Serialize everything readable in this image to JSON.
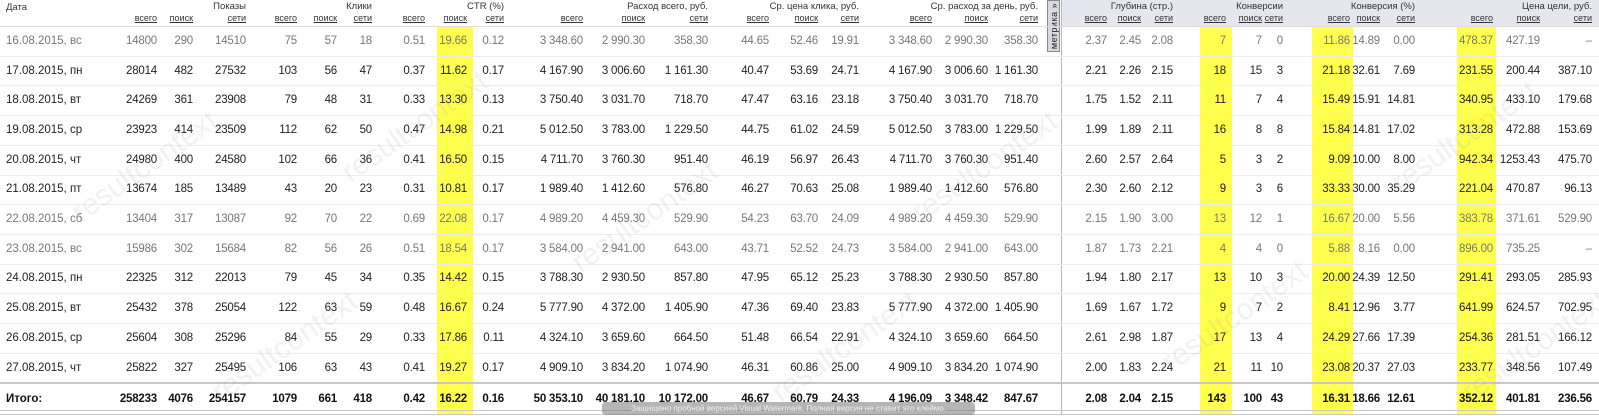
{
  "header": {
    "date_label": "Дата",
    "groups": [
      {
        "title": "Показы",
        "subs": [
          "всего",
          "поиск",
          "сети"
        ]
      },
      {
        "title": "Клики",
        "subs": [
          "всего",
          "поиск",
          "сети"
        ]
      },
      {
        "title": "CTR (%)",
        "subs": [
          "всего",
          "поиск",
          "сети"
        ]
      },
      {
        "title": "Расход всего, руб.",
        "subs": [
          "всего",
          "поиск",
          "сети"
        ]
      },
      {
        "title": "Ср. цена клика, руб.",
        "subs": [
          "всего",
          "поиск",
          "сети"
        ]
      },
      {
        "title": "Ср. расход за день, руб.",
        "subs": [
          "всего",
          "поиск",
          "сети"
        ]
      },
      {
        "title": "Глубина (стр.)",
        "subs": [
          "всего",
          "поиск",
          "сети"
        ]
      },
      {
        "title": "Конверсии",
        "subs": [
          "всего",
          "поиск",
          "сети"
        ]
      },
      {
        "title": "Конверсия (%)",
        "subs": [
          "всего",
          "поиск",
          "сети"
        ]
      },
      {
        "title": "Цена цели, руб.",
        "subs": [
          "всего",
          "поиск",
          "сети"
        ]
      }
    ],
    "metrica_tab": "метрика »"
  },
  "highlight_color": "#ffff4d",
  "rows": [
    {
      "date": "16.08.2015, вс",
      "muted": true,
      "values": [
        "14800",
        "290",
        "14510",
        "75",
        "57",
        "18",
        "0.51",
        "19.66",
        "0.12",
        "3 348.60",
        "2 990.30",
        "358.30",
        "44.65",
        "52.46",
        "19.91",
        "3 348.60",
        "2 990.30",
        "358.30",
        "2.37",
        "2.45",
        "2.08",
        "7",
        "7",
        "0",
        "11.86",
        "14.89",
        "0.00",
        "478.37",
        "427.19",
        "–"
      ]
    },
    {
      "date": "17.08.2015, пн",
      "muted": false,
      "values": [
        "28014",
        "482",
        "27532",
        "103",
        "56",
        "47",
        "0.37",
        "11.62",
        "0.17",
        "4 167.90",
        "3 006.60",
        "1 161.30",
        "40.47",
        "53.69",
        "24.71",
        "4 167.90",
        "3 006.60",
        "1 161.30",
        "2.21",
        "2.26",
        "2.15",
        "18",
        "15",
        "3",
        "21.18",
        "32.61",
        "7.69",
        "231.55",
        "200.44",
        "387.10"
      ]
    },
    {
      "date": "18.08.2015, вт",
      "muted": false,
      "values": [
        "24269",
        "361",
        "23908",
        "79",
        "48",
        "31",
        "0.33",
        "13.30",
        "0.13",
        "3 750.40",
        "3 031.70",
        "718.70",
        "47.47",
        "63.16",
        "23.18",
        "3 750.40",
        "3 031.70",
        "718.70",
        "1.75",
        "1.52",
        "2.11",
        "11",
        "7",
        "4",
        "15.49",
        "15.91",
        "14.81",
        "340.95",
        "433.10",
        "179.68"
      ]
    },
    {
      "date": "19.08.2015, ср",
      "muted": false,
      "values": [
        "23923",
        "414",
        "23509",
        "112",
        "62",
        "50",
        "0.47",
        "14.98",
        "0.21",
        "5 012.50",
        "3 783.00",
        "1 229.50",
        "44.75",
        "61.02",
        "24.59",
        "5 012.50",
        "3 783.00",
        "1 229.50",
        "1.99",
        "1.89",
        "2.11",
        "16",
        "8",
        "8",
        "15.84",
        "14.81",
        "17.02",
        "313.28",
        "472.88",
        "153.69"
      ]
    },
    {
      "date": "20.08.2015, чт",
      "muted": false,
      "values": [
        "24980",
        "400",
        "24580",
        "102",
        "66",
        "36",
        "0.41",
        "16.50",
        "0.15",
        "4 711.70",
        "3 760.30",
        "951.40",
        "46.19",
        "56.97",
        "26.43",
        "4 711.70",
        "3 760.30",
        "951.40",
        "2.60",
        "2.57",
        "2.64",
        "5",
        "3",
        "2",
        "9.09",
        "10.00",
        "8.00",
        "942.34",
        "1253.43",
        "475.70"
      ]
    },
    {
      "date": "21.08.2015, пт",
      "muted": false,
      "values": [
        "13674",
        "185",
        "13489",
        "43",
        "20",
        "23",
        "0.31",
        "10.81",
        "0.17",
        "1 989.40",
        "1 412.60",
        "576.80",
        "46.27",
        "70.63",
        "25.08",
        "1 989.40",
        "1 412.60",
        "576.80",
        "2.30",
        "2.60",
        "2.12",
        "9",
        "3",
        "6",
        "33.33",
        "30.00",
        "35.29",
        "221.04",
        "470.87",
        "96.13"
      ]
    },
    {
      "date": "22.08.2015, сб",
      "muted": true,
      "values": [
        "13404",
        "317",
        "13087",
        "92",
        "70",
        "22",
        "0.69",
        "22.08",
        "0.17",
        "4 989.20",
        "4 459.30",
        "529.90",
        "54.23",
        "63.70",
        "24.09",
        "4 989.20",
        "4 459.30",
        "529.90",
        "2.15",
        "1.90",
        "3.00",
        "13",
        "12",
        "1",
        "16.67",
        "20.00",
        "5.56",
        "383.78",
        "371.61",
        "529.90"
      ]
    },
    {
      "date": "23.08.2015, вс",
      "muted": true,
      "values": [
        "15986",
        "302",
        "15684",
        "82",
        "56",
        "26",
        "0.51",
        "18.54",
        "0.17",
        "3 584.00",
        "2 941.00",
        "643.00",
        "43.71",
        "52.52",
        "24.73",
        "3 584.00",
        "2 941.00",
        "643.00",
        "1.87",
        "1.73",
        "2.21",
        "4",
        "4",
        "0",
        "5.88",
        "8.16",
        "0.00",
        "896.00",
        "735.25",
        "–"
      ]
    },
    {
      "date": "24.08.2015, пн",
      "muted": false,
      "values": [
        "22325",
        "312",
        "22013",
        "79",
        "45",
        "34",
        "0.35",
        "14.42",
        "0.15",
        "3 788.30",
        "2 930.50",
        "857.80",
        "47.95",
        "65.12",
        "25.23",
        "3 788.30",
        "2 930.50",
        "857.80",
        "1.94",
        "1.80",
        "2.17",
        "13",
        "10",
        "3",
        "20.00",
        "24.39",
        "12.50",
        "291.41",
        "293.05",
        "285.93"
      ]
    },
    {
      "date": "25.08.2015, вт",
      "muted": false,
      "values": [
        "25432",
        "378",
        "25054",
        "122",
        "63",
        "59",
        "0.48",
        "16.67",
        "0.24",
        "5 777.90",
        "4 372.00",
        "1 405.90",
        "47.36",
        "69.40",
        "23.83",
        "5 777.90",
        "4 372.00",
        "1 405.90",
        "1.69",
        "1.67",
        "1.72",
        "9",
        "7",
        "2",
        "8.41",
        "12.96",
        "3.77",
        "641.99",
        "624.57",
        "702.95"
      ]
    },
    {
      "date": "26.08.2015, ср",
      "muted": false,
      "values": [
        "25604",
        "308",
        "25296",
        "84",
        "55",
        "29",
        "0.33",
        "17.86",
        "0.11",
        "4 324.10",
        "3 659.60",
        "664.50",
        "51.48",
        "66.54",
        "22.91",
        "4 324.10",
        "3 659.60",
        "664.50",
        "2.61",
        "2.98",
        "1.87",
        "17",
        "13",
        "4",
        "24.29",
        "27.66",
        "17.39",
        "254.36",
        "281.51",
        "166.12"
      ]
    },
    {
      "date": "27.08.2015, чт",
      "muted": false,
      "values": [
        "25822",
        "327",
        "25495",
        "106",
        "63",
        "43",
        "0.41",
        "19.27",
        "0.17",
        "4 909.10",
        "3 834.20",
        "1 074.90",
        "46.31",
        "60.86",
        "25.00",
        "4 909.10",
        "3 834.20",
        "1 074.90",
        "2.00",
        "1.83",
        "2.24",
        "21",
        "11",
        "10",
        "23.08",
        "20.37",
        "27.03",
        "233.77",
        "348.56",
        "107.49"
      ]
    }
  ],
  "total": {
    "label": "Итого:",
    "values": [
      "258233",
      "4076",
      "254157",
      "1079",
      "661",
      "418",
      "0.42",
      "16.22",
      "0.16",
      "50 353.10",
      "40 181.10",
      "10 172.00",
      "46.67",
      "60.79",
      "24.33",
      "4 196.09",
      "3 348.42",
      "847.67",
      "2.08",
      "2.04",
      "2.15",
      "143",
      "100",
      "43",
      "16.31",
      "18.66",
      "12.61",
      "352.12",
      "401.81",
      "236.56"
    ]
  },
  "watermark_logo": "resultcontext",
  "trial_banner": "Защищено пробной версией Visual Watermark. Полная версия не ставит это клеймо."
}
